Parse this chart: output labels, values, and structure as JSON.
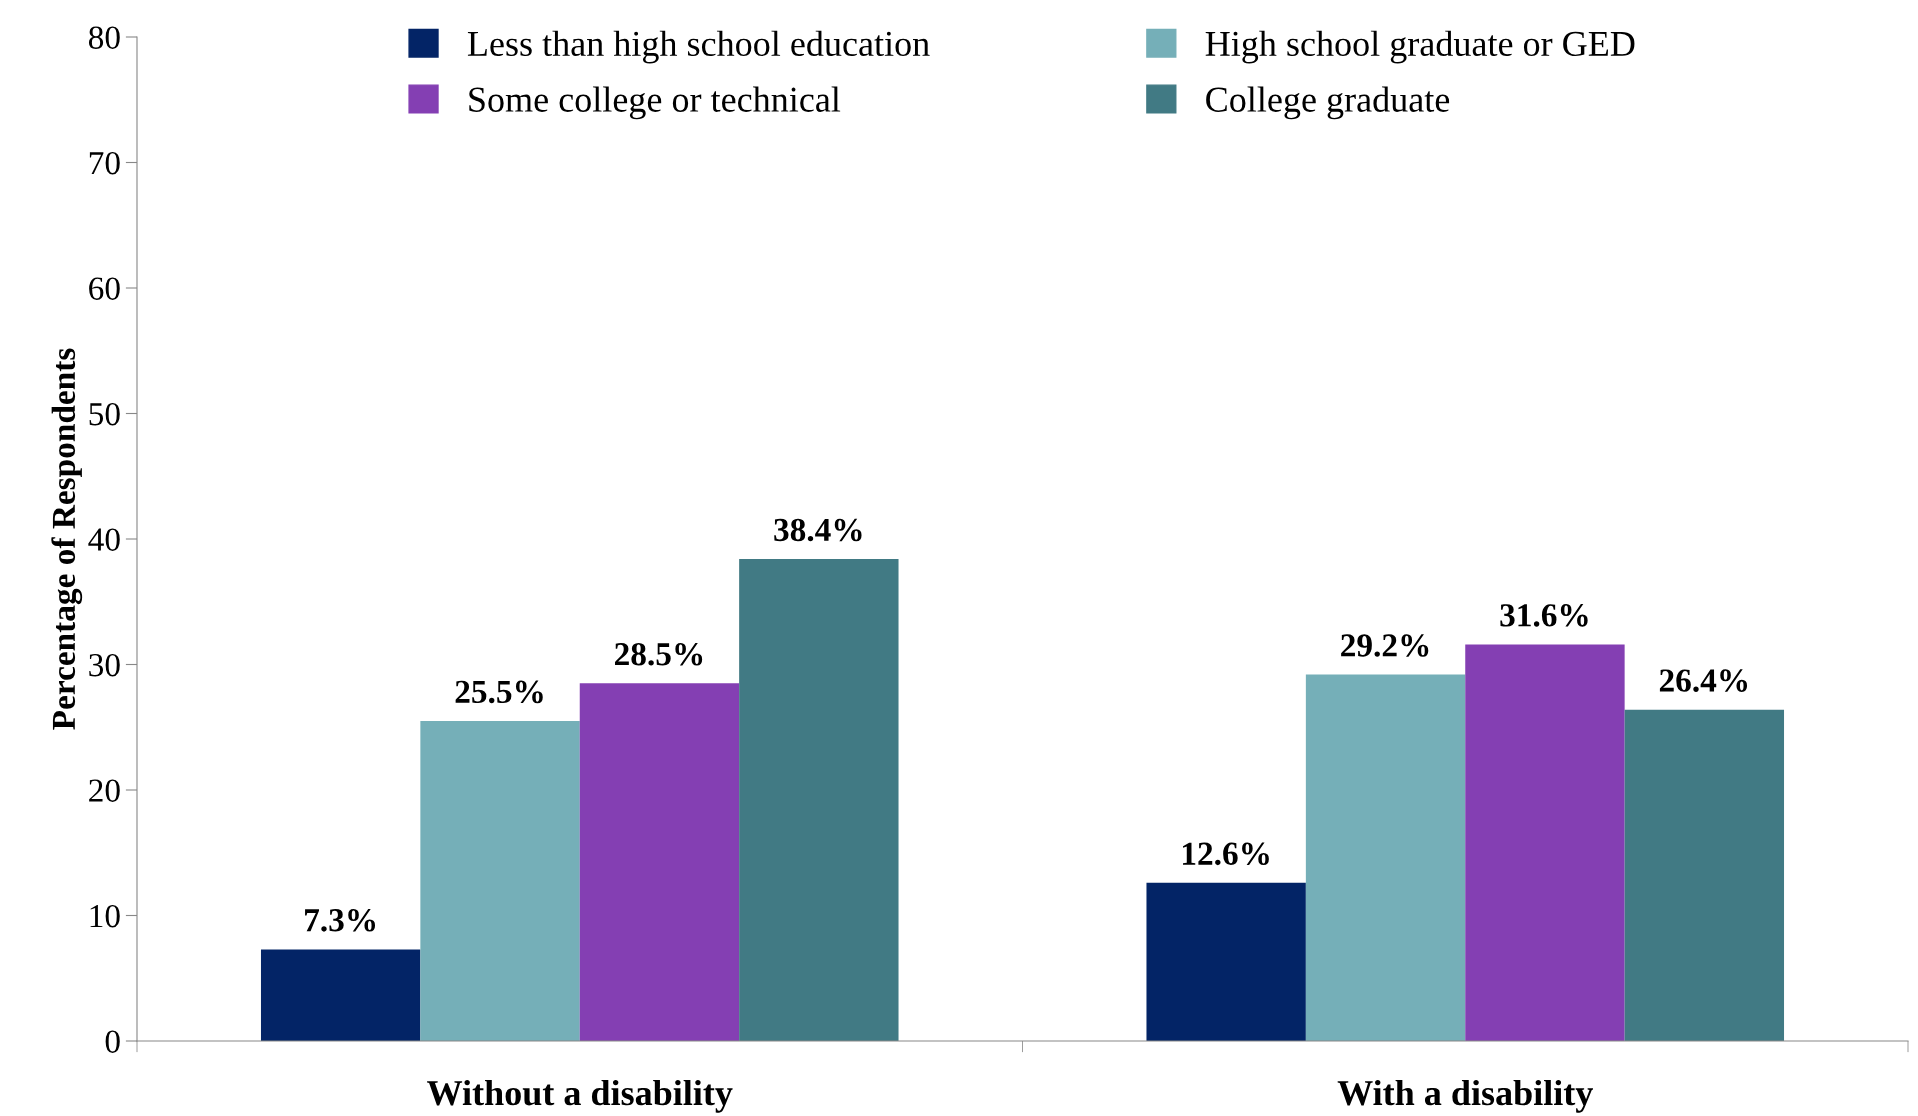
{
  "chart_data": {
    "type": "bar",
    "ylabel": "Percentage of Respondents",
    "categories": [
      "Without a disability",
      "With a disability"
    ],
    "series": [
      {
        "name": "Less than high school education",
        "color": "#032466",
        "values": [
          7.3,
          12.6
        ],
        "value_labels": [
          "7.3%",
          "12.6%"
        ]
      },
      {
        "name": "High school graduate or GED",
        "color": "#75afb8",
        "values": [
          25.5,
          29.2
        ],
        "value_labels": [
          "25.5%",
          "29.2%"
        ]
      },
      {
        "name": "Some college or technical",
        "color": "#843fb3",
        "values": [
          28.5,
          31.6
        ],
        "value_labels": [
          "28.5%",
          "31.6%"
        ]
      },
      {
        "name": "College graduate",
        "color": "#417a84",
        "values": [
          38.4,
          26.4
        ],
        "value_labels": [
          "38.4%",
          "26.4%"
        ]
      }
    ],
    "ylim": [
      0,
      80
    ],
    "yticks": [
      0,
      10,
      20,
      30,
      40,
      50,
      60,
      70,
      80
    ],
    "grid": false,
    "legend": "top"
  }
}
